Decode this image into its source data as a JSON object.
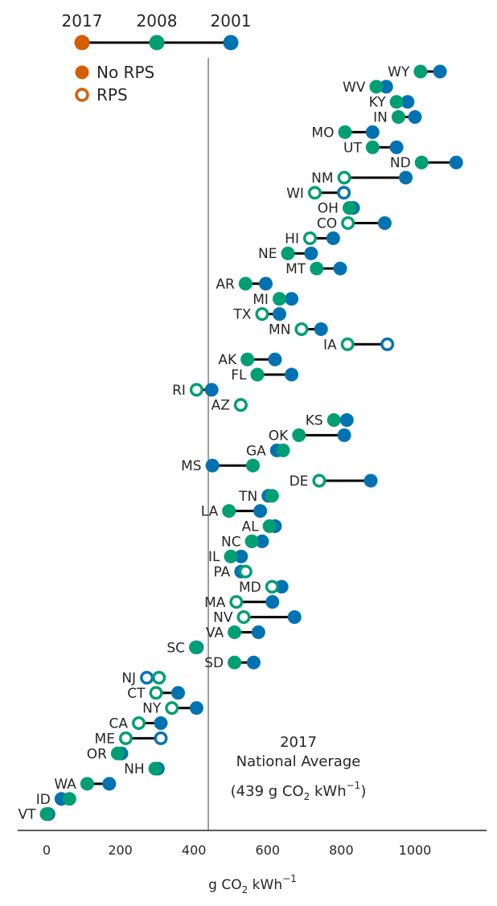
{
  "chart_data": {
    "type": "dumbbell",
    "xlabel": "g CO",
    "xlabel_sub": "2",
    "xlabel_unit": " kWh",
    "xlabel_sup": "−1",
    "xticks": [
      0,
      200,
      400,
      600,
      800,
      1000
    ],
    "xlim": [
      -75,
      1185
    ],
    "national_average": 439,
    "annotation": {
      "line1": "2017",
      "line2": "National Average",
      "line3_prefix": "(439 g CO",
      "line3_sub": "2",
      "line3_unit": " kWh",
      "line3_sup": "−1",
      "line3_suffix": ")"
    },
    "year_legend": {
      "years": [
        "2017",
        "2008",
        "2001"
      ],
      "colors": [
        "#d55e00",
        "#009e73",
        "#0072b2"
      ]
    },
    "legend": [
      {
        "label": "No RPS",
        "style": "filled"
      },
      {
        "label": "RPS",
        "style": "open"
      }
    ],
    "colors": {
      "y2017": "#009e73",
      "y2001": "#0072b2",
      "legend": "#d55e00",
      "line": "#000000"
    },
    "states": [
      {
        "name": "WY",
        "v2001": 1068,
        "v2017": 1015,
        "rps2001": false,
        "rps2017": false
      },
      {
        "name": "WV",
        "v2001": 922,
        "v2017": 895,
        "rps2001": false,
        "rps2017": false
      },
      {
        "name": "KY",
        "v2001": 980,
        "v2017": 950,
        "rps2001": false,
        "rps2017": false
      },
      {
        "name": "IN",
        "v2001": 1000,
        "v2017": 955,
        "rps2001": false,
        "rps2017": false
      },
      {
        "name": "MO",
        "v2001": 885,
        "v2017": 810,
        "rps2001": false,
        "rps2017": false
      },
      {
        "name": "UT",
        "v2001": 950,
        "v2017": 885,
        "rps2001": false,
        "rps2017": false
      },
      {
        "name": "ND",
        "v2001": 1112,
        "v2017": 1018,
        "rps2001": false,
        "rps2017": false
      },
      {
        "name": "NM",
        "v2001": 975,
        "v2017": 808,
        "rps2001": false,
        "rps2017": true
      },
      {
        "name": "WI",
        "v2001": 807,
        "v2017": 728,
        "rps2001": true,
        "rps2017": true
      },
      {
        "name": "OH",
        "v2001": 832,
        "v2017": 822,
        "rps2001": false,
        "rps2017": false
      },
      {
        "name": "CO",
        "v2001": 918,
        "v2017": 818,
        "rps2001": false,
        "rps2017": true
      },
      {
        "name": "HI",
        "v2001": 778,
        "v2017": 715,
        "rps2001": false,
        "rps2017": true
      },
      {
        "name": "NE",
        "v2001": 718,
        "v2017": 655,
        "rps2001": false,
        "rps2017": false
      },
      {
        "name": "MT",
        "v2001": 797,
        "v2017": 733,
        "rps2001": false,
        "rps2017": false
      },
      {
        "name": "AR",
        "v2001": 595,
        "v2017": 540,
        "rps2001": false,
        "rps2017": false
      },
      {
        "name": "MI",
        "v2001": 665,
        "v2017": 632,
        "rps2001": false,
        "rps2017": false
      },
      {
        "name": "TX",
        "v2001": 632,
        "v2017": 585,
        "rps2001": false,
        "rps2017": true
      },
      {
        "name": "MN",
        "v2001": 745,
        "v2017": 692,
        "rps2001": false,
        "rps2017": true
      },
      {
        "name": "IA",
        "v2001": 925,
        "v2017": 817,
        "rps2001": true,
        "rps2017": true
      },
      {
        "name": "AK",
        "v2001": 620,
        "v2017": 545,
        "rps2001": false,
        "rps2017": false
      },
      {
        "name": "FL",
        "v2001": 665,
        "v2017": 572,
        "rps2001": false,
        "rps2017": false
      },
      {
        "name": "RI",
        "v2001": 448,
        "v2017": 407,
        "rps2001": false,
        "rps2017": true
      },
      {
        "name": "AZ",
        "v2001": 527,
        "v2017": 527,
        "rps2001": false,
        "rps2017": true
      },
      {
        "name": "KS",
        "v2001": 815,
        "v2017": 780,
        "rps2001": false,
        "rps2017": false
      },
      {
        "name": "OK",
        "v2001": 808,
        "v2017": 685,
        "rps2001": false,
        "rps2017": false
      },
      {
        "name": "GA",
        "v2001": 625,
        "v2017": 642,
        "rps2001": false,
        "rps2017": false
      },
      {
        "name": "MS",
        "v2001": 450,
        "v2017": 560,
        "rps2001": false,
        "rps2017": false
      },
      {
        "name": "DE",
        "v2001": 880,
        "v2017": 740,
        "rps2001": false,
        "rps2017": true
      },
      {
        "name": "TN",
        "v2001": 602,
        "v2017": 612,
        "rps2001": false,
        "rps2017": false
      },
      {
        "name": "LA",
        "v2001": 580,
        "v2017": 495,
        "rps2001": false,
        "rps2017": false
      },
      {
        "name": "AL",
        "v2001": 620,
        "v2017": 605,
        "rps2001": false,
        "rps2017": false
      },
      {
        "name": "NC",
        "v2001": 585,
        "v2017": 557,
        "rps2001": false,
        "rps2017": false
      },
      {
        "name": "IL",
        "v2001": 528,
        "v2017": 500,
        "rps2001": false,
        "rps2017": false
      },
      {
        "name": "PA",
        "v2001": 528,
        "v2017": 540,
        "rps2001": false,
        "rps2017": true
      },
      {
        "name": "MD",
        "v2001": 638,
        "v2017": 612,
        "rps2001": false,
        "rps2017": true
      },
      {
        "name": "MA",
        "v2001": 613,
        "v2017": 515,
        "rps2001": false,
        "rps2017": true
      },
      {
        "name": "NV",
        "v2001": 673,
        "v2017": 535,
        "rps2001": false,
        "rps2017": true
      },
      {
        "name": "VA",
        "v2001": 575,
        "v2017": 510,
        "rps2001": false,
        "rps2017": false
      },
      {
        "name": "SC",
        "v2001": 408,
        "v2017": 405,
        "rps2001": false,
        "rps2017": false
      },
      {
        "name": "SD",
        "v2001": 562,
        "v2017": 510,
        "rps2001": false,
        "rps2017": false
      },
      {
        "name": "NJ",
        "v2001": 272,
        "v2017": 305,
        "rps2001": true,
        "rps2017": true
      },
      {
        "name": "CT",
        "v2001": 357,
        "v2017": 297,
        "rps2001": false,
        "rps2017": true
      },
      {
        "name": "NY",
        "v2001": 407,
        "v2017": 340,
        "rps2001": false,
        "rps2017": true
      },
      {
        "name": "CA",
        "v2001": 310,
        "v2017": 250,
        "rps2001": false,
        "rps2017": true
      },
      {
        "name": "ME",
        "v2001": 310,
        "v2017": 215,
        "rps2001": true,
        "rps2017": true
      },
      {
        "name": "OR",
        "v2001": 203,
        "v2017": 193,
        "rps2001": false,
        "rps2017": false
      },
      {
        "name": "NH",
        "v2001": 302,
        "v2017": 295,
        "rps2001": false,
        "rps2017": false
      },
      {
        "name": "WA",
        "v2001": 170,
        "v2017": 110,
        "rps2001": false,
        "rps2017": false
      },
      {
        "name": "ID",
        "v2001": 40,
        "v2017": 62,
        "rps2001": false,
        "rps2017": false
      },
      {
        "name": "VT",
        "v2001": 5,
        "v2017": 0,
        "rps2001": false,
        "rps2017": false
      }
    ]
  }
}
